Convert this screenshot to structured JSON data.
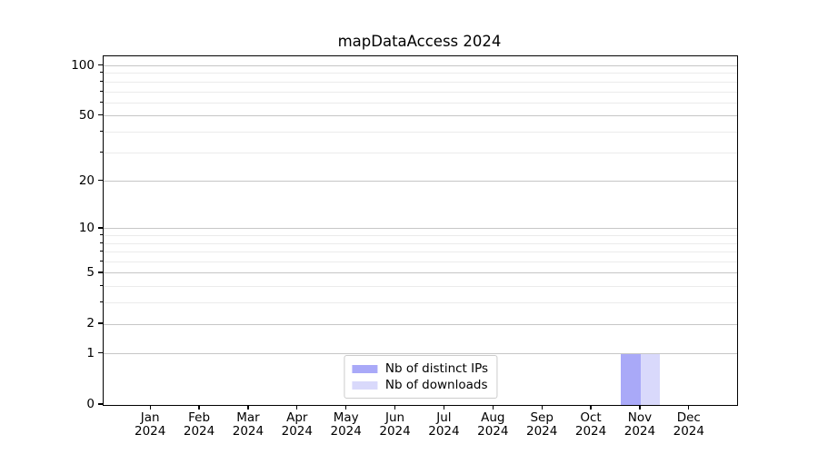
{
  "chart_data": {
    "type": "bar",
    "title": "mapDataAccess 2024",
    "xlabel": "",
    "ylabel": "",
    "categories": [
      "Jan",
      "Feb",
      "Mar",
      "Apr",
      "May",
      "Jun",
      "Jul",
      "Aug",
      "Sep",
      "Oct",
      "Nov",
      "Dec"
    ],
    "category_sublabels": [
      "2024",
      "2024",
      "2024",
      "2024",
      "2024",
      "2024",
      "2024",
      "2024",
      "2024",
      "2024",
      "2024",
      "2024"
    ],
    "series": [
      {
        "name": "Nb of distinct IPs",
        "color": "#a9a9f8",
        "values": [
          0,
          0,
          0,
          0,
          0,
          0,
          0,
          0,
          0,
          0,
          1,
          0
        ]
      },
      {
        "name": "Nb of downloads",
        "color": "#d9d9fb",
        "values": [
          0,
          0,
          0,
          0,
          0,
          0,
          0,
          0,
          0,
          0,
          1,
          0
        ]
      }
    ],
    "yscale": "log1p",
    "ylim": [
      0,
      114
    ],
    "y_major_ticks": [
      0,
      1,
      2,
      5,
      10,
      20,
      50,
      100
    ],
    "y_major_tick_labels": [
      "0",
      "1",
      "2",
      "5",
      "10",
      "20",
      "50",
      "100"
    ],
    "y_minor_ticks": [
      3,
      4,
      6,
      7,
      8,
      9,
      30,
      40,
      60,
      70,
      80,
      90
    ],
    "grid": true,
    "legend_position": "lower center",
    "colors": {
      "axis": "#000000",
      "grid_major": "#c6c6c6",
      "grid_minor": "#ebebeb",
      "background": "#ffffff"
    }
  }
}
